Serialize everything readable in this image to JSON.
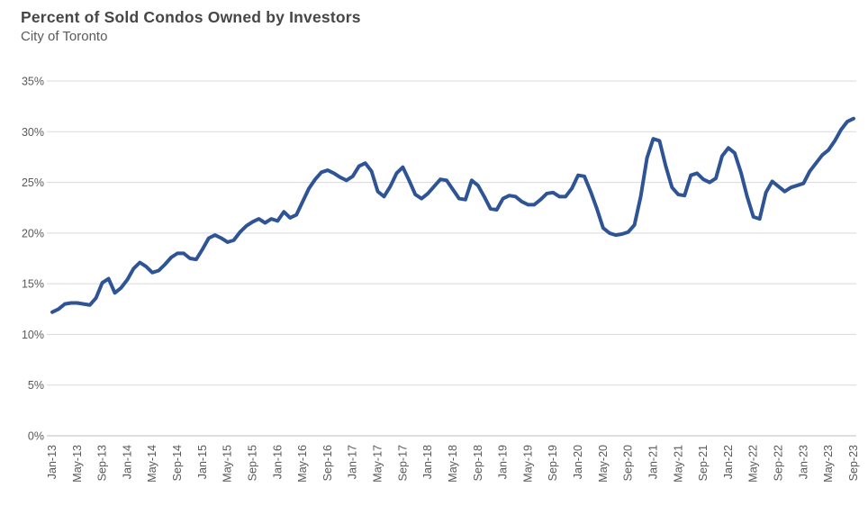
{
  "header": {
    "title": "Percent of Sold Condos Owned by Investors",
    "subtitle": "City of Toronto"
  },
  "chart_data": {
    "type": "line",
    "title": "Percent of Sold Condos Owned by Investors",
    "subtitle": "City of Toronto",
    "xlabel": "",
    "ylabel": "",
    "ylim": [
      0,
      35
    ],
    "y_tick_step": 5,
    "y_tick_labels": [
      "0%",
      "5%",
      "10%",
      "15%",
      "20%",
      "25%",
      "30%",
      "35%"
    ],
    "grid": "horizontal",
    "legend": "none",
    "x_start": "Jan-13",
    "x_end": "Sep-23",
    "frequency": "monthly",
    "x_tick_every_n_months": 4,
    "x_tick_labels": [
      "Jan-13",
      "May-13",
      "Sep-13",
      "Jan-14",
      "May-14",
      "Sep-14",
      "Jan-15",
      "May-15",
      "Sep-15",
      "Jan-16",
      "May-16",
      "Sep-16",
      "Jan-17",
      "May-17",
      "Sep-17",
      "Jan-18",
      "May-18",
      "Sep-18",
      "Jan-19",
      "May-19",
      "Sep-19",
      "Jan-20",
      "May-20",
      "Sep-20",
      "Jan-21",
      "May-21",
      "Sep-21",
      "Jan-22",
      "May-22",
      "Sep-22",
      "Jan-23",
      "May-23",
      "Sep-23"
    ],
    "series": [
      {
        "name": "Percent of sold condos owned by investors",
        "values": [
          12.2,
          12.5,
          13.0,
          13.1,
          13.1,
          13.0,
          12.9,
          13.6,
          15.1,
          15.5,
          14.1,
          14.6,
          15.4,
          16.5,
          17.1,
          16.7,
          16.1,
          16.3,
          16.9,
          17.6,
          18.0,
          18.0,
          17.5,
          17.4,
          18.4,
          19.5,
          19.8,
          19.5,
          19.1,
          19.3,
          20.1,
          20.7,
          21.1,
          21.4,
          21.0,
          21.4,
          21.2,
          22.1,
          21.5,
          21.8,
          23.1,
          24.4,
          25.3,
          26.0,
          26.2,
          25.9,
          25.5,
          25.2,
          25.6,
          26.6,
          26.9,
          26.1,
          24.1,
          23.6,
          24.6,
          25.9,
          26.5,
          25.2,
          23.8,
          23.4,
          23.9,
          24.6,
          25.3,
          25.2,
          24.3,
          23.4,
          23.3,
          25.2,
          24.7,
          23.6,
          22.4,
          22.3,
          23.4,
          23.7,
          23.6,
          23.1,
          22.8,
          22.8,
          23.3,
          23.9,
          24.0,
          23.6,
          23.6,
          24.4,
          25.7,
          25.6,
          24.1,
          22.4,
          20.5,
          20.0,
          19.8,
          19.9,
          20.1,
          20.8,
          23.6,
          27.4,
          29.3,
          29.1,
          26.6,
          24.5,
          23.8,
          23.7,
          25.7,
          25.9,
          25.3,
          25.0,
          25.4,
          27.6,
          28.4,
          27.9,
          26.0,
          23.6,
          21.6,
          21.4,
          24.0,
          25.1,
          24.6,
          24.1,
          24.5,
          24.7,
          24.9,
          26.1,
          26.9,
          27.7,
          28.2,
          29.1,
          30.2,
          31.0,
          31.3
        ]
      }
    ],
    "colors": {
      "line": "#2F5496",
      "gridline": "#D9D9D9",
      "baseline": "#BFBFBF",
      "axis_text": "#595959",
      "title_text": "#464646"
    }
  }
}
